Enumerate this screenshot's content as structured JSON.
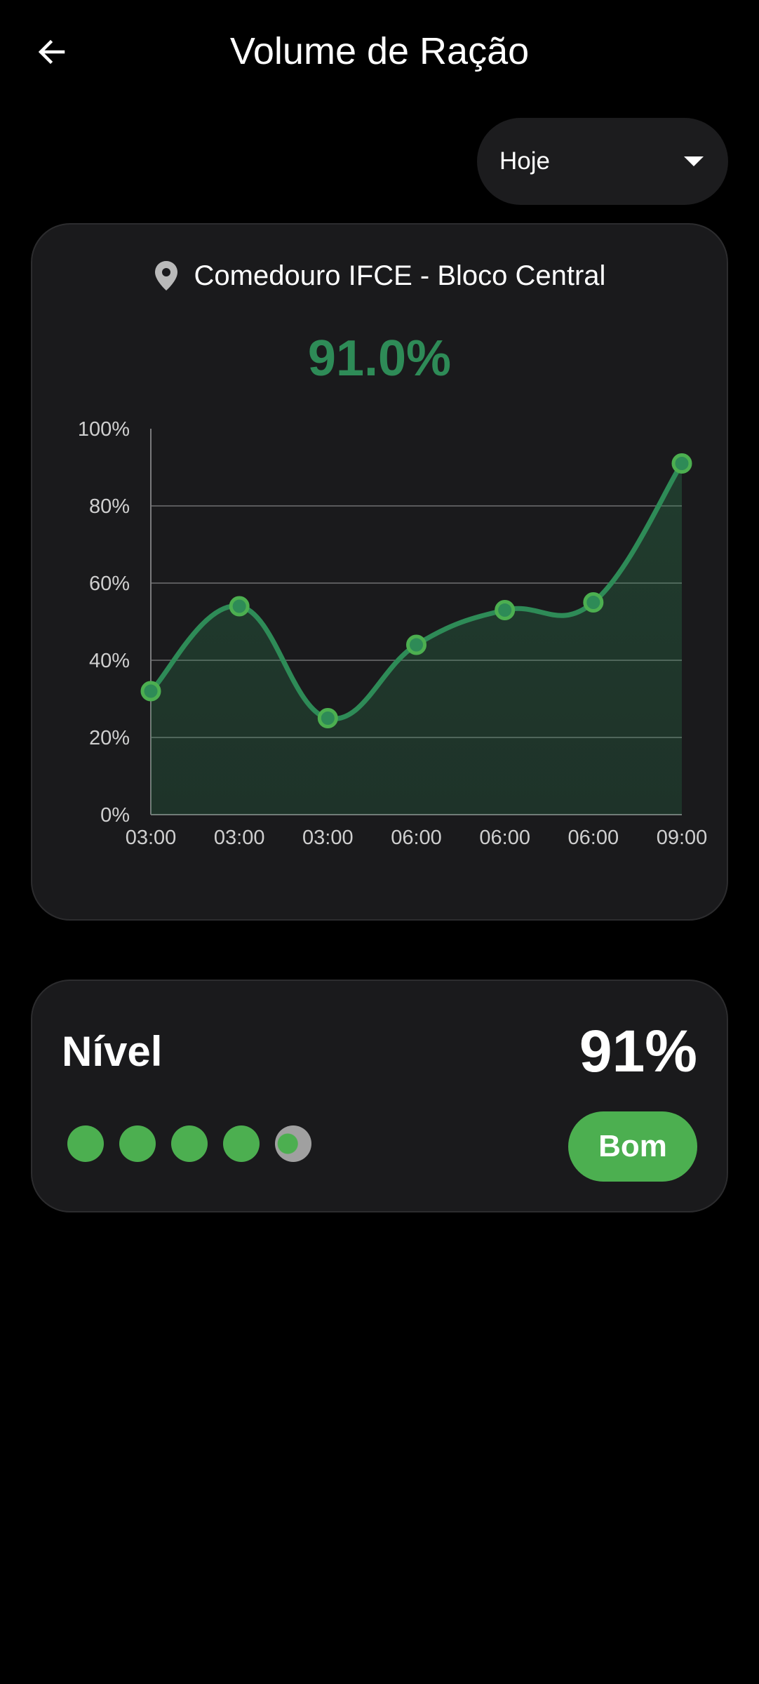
{
  "header": {
    "title": "Volume de Ração",
    "back_icon": "arrow-left-icon"
  },
  "filter": {
    "selected": "Hoje",
    "icon": "caret-down-icon"
  },
  "chart_card": {
    "location_icon": "map-pin-icon",
    "location": "Comedouro IFCE - Bloco Central",
    "current_value": "91.0%",
    "accent_color": "#2e8b57",
    "point_color": "#4caf50"
  },
  "chart_data": {
    "type": "area",
    "x": [
      "03:00",
      "03:00",
      "03:00",
      "06:00",
      "06:00",
      "06:00",
      "09:00"
    ],
    "series": [
      {
        "values": [
          32,
          54,
          25,
          44,
          53,
          55,
          91
        ]
      }
    ],
    "yticks": [
      "0%",
      "20%",
      "40%",
      "60%",
      "80%",
      "100%"
    ],
    "ylim": [
      0,
      100
    ],
    "grid": true
  },
  "level_card": {
    "title": "Nível",
    "value": "91%",
    "level_fraction": 0.91,
    "status": "Bom",
    "status_color": "#4caf50"
  }
}
